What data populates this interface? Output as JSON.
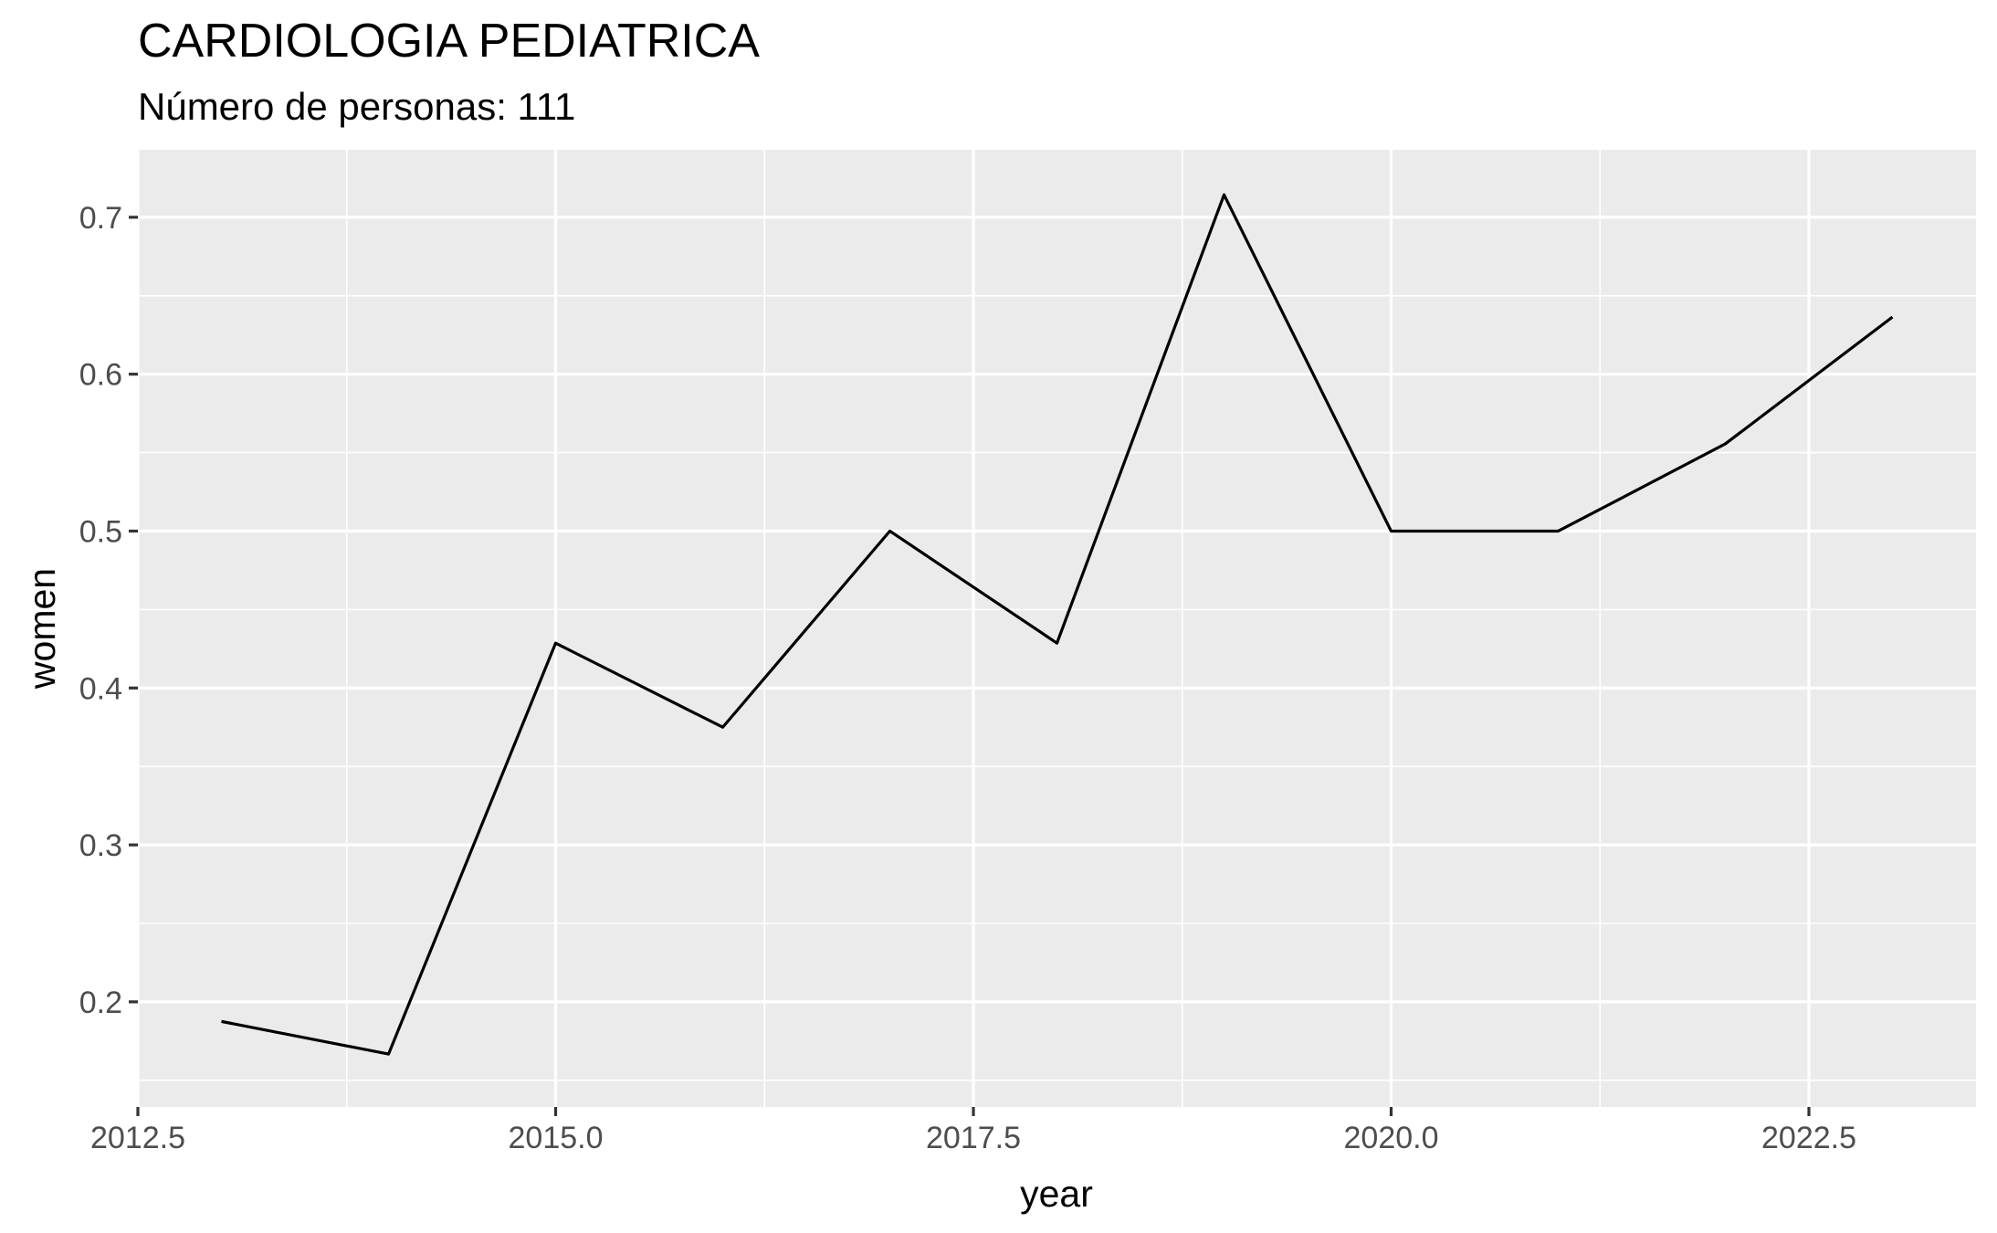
{
  "chart_data": {
    "type": "line",
    "title": "CARDIOLOGIA PEDIATRICA",
    "subtitle": "Número de personas: 111",
    "xlabel": "year",
    "ylabel": "women",
    "xlim": [
      2012.5,
      2023.5
    ],
    "ylim": [
      0.133,
      0.743
    ],
    "x_ticks": [
      2012.5,
      2015.0,
      2017.5,
      2020.0,
      2022.5
    ],
    "x_tick_labels": [
      "2012.5",
      "2015.0",
      "2017.5",
      "2020.0",
      "2022.5"
    ],
    "y_ticks": [
      0.2,
      0.3,
      0.4,
      0.5,
      0.6,
      0.7
    ],
    "y_tick_labels": [
      "0.2",
      "0.3",
      "0.4",
      "0.5",
      "0.6",
      "0.7"
    ],
    "grid": true,
    "colors": {
      "panel_background": "#ebebeb",
      "gridline": "#ffffff",
      "line": "#000000",
      "tick_label": "#4d4d4d",
      "tick_mark": "#333333"
    },
    "series": [
      {
        "x": [
          2013,
          2014,
          2015,
          2016,
          2017,
          2018,
          2019,
          2020,
          2021,
          2022,
          2023
        ],
        "values": [
          0.1875,
          0.1667,
          0.4286,
          0.375,
          0.5,
          0.4286,
          0.7143,
          0.5,
          0.5,
          0.5556,
          0.6364
        ]
      }
    ]
  }
}
